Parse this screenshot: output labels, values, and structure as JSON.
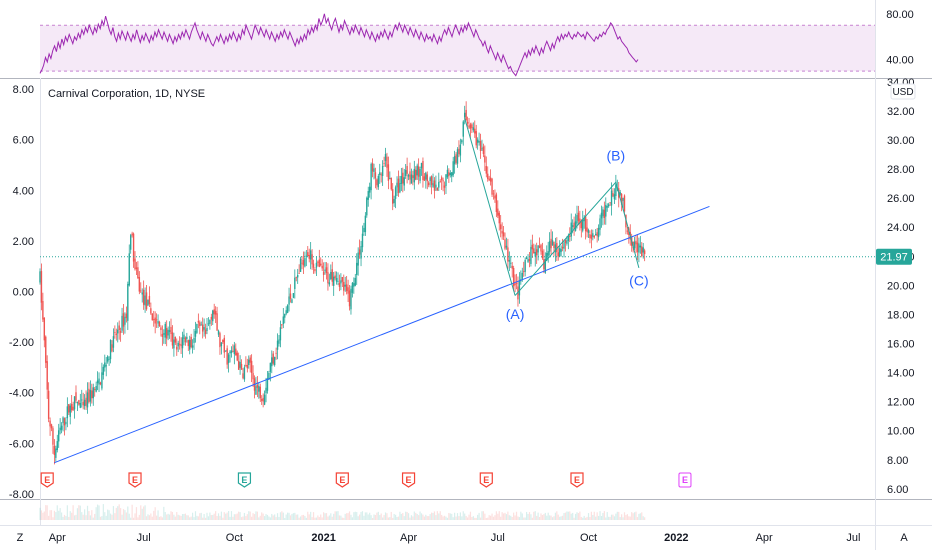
{
  "chart_data": [
    {
      "type": "line",
      "name": "rsi-panel",
      "y_ticks": [
        "80.00",
        "40.00"
      ],
      "y_tick_values": [
        80,
        40
      ],
      "band": [
        30,
        70
      ],
      "ylim": [
        24,
        92
      ],
      "x_index_range": [
        0,
        350
      ],
      "values": [
        28,
        31,
        35,
        42,
        38,
        45,
        41,
        48,
        52,
        47,
        55,
        50,
        58,
        53,
        60,
        56,
        62,
        58,
        54,
        60,
        57,
        63,
        59,
        66,
        62,
        68,
        64,
        70,
        66,
        62,
        68,
        64,
        71,
        67,
        74,
        70,
        78,
        72,
        66,
        62,
        68,
        60,
        56,
        63,
        58,
        65,
        61,
        57,
        64,
        60,
        56,
        62,
        58,
        66,
        60,
        55,
        61,
        57,
        63,
        59,
        55,
        61,
        57,
        64,
        60,
        66,
        62,
        58,
        64,
        60,
        56,
        62,
        58,
        54,
        60,
        56,
        62,
        58,
        64,
        60,
        66,
        62,
        58,
        64,
        68,
        72,
        66,
        62,
        58,
        64,
        60,
        56,
        62,
        58,
        54,
        52,
        56,
        60,
        56,
        62,
        58,
        54,
        60,
        56,
        62,
        58,
        64,
        60,
        56,
        62,
        58,
        66,
        62,
        70,
        66,
        62,
        58,
        64,
        70,
        66,
        62,
        68,
        64,
        60,
        66,
        62,
        58,
        64,
        60,
        56,
        62,
        58,
        64,
        60,
        66,
        62,
        58,
        64,
        60,
        56,
        52,
        58,
        54,
        60,
        56,
        62,
        58,
        66,
        62,
        68,
        64,
        70,
        66,
        76,
        70,
        74,
        80,
        72,
        76,
        70,
        66,
        72,
        76,
        70,
        64,
        70,
        66,
        74,
        70,
        66,
        62,
        68,
        64,
        70,
        66,
        62,
        68,
        64,
        60,
        66,
        62,
        58,
        64,
        60,
        56,
        62,
        58,
        64,
        60,
        66,
        62,
        58,
        64,
        60,
        66,
        70,
        66,
        72,
        68,
        64,
        70,
        66,
        62,
        68,
        64,
        60,
        66,
        62,
        58,
        64,
        60,
        56,
        62,
        58,
        60,
        56,
        62,
        58,
        54,
        60,
        56,
        62,
        66,
        62,
        68,
        64,
        60,
        66,
        70,
        66,
        62,
        68,
        64,
        70,
        66,
        72,
        68,
        64,
        60,
        66,
        62,
        58,
        56,
        52,
        56,
        50,
        46,
        52,
        48,
        44,
        40,
        46,
        42,
        38,
        44,
        40,
        36,
        32,
        34,
        30,
        28,
        26,
        30,
        34,
        38,
        42,
        46,
        42,
        48,
        44,
        50,
        46,
        52,
        48,
        44,
        50,
        46,
        52,
        56,
        52,
        48,
        54,
        50,
        56,
        60,
        56,
        62,
        58,
        62,
        60,
        64,
        60,
        58,
        62,
        60,
        64,
        62,
        60,
        62,
        58,
        64,
        62,
        60,
        58,
        56,
        60,
        58,
        62,
        60,
        64,
        62,
        66,
        68,
        72,
        70,
        66,
        62,
        58,
        60,
        56,
        54,
        52,
        50,
        46,
        44,
        42,
        40,
        38,
        40
      ],
      "color": "#9c27b0"
    },
    {
      "type": "candlestick",
      "name": "price-panel",
      "title": "Carnival Corporation, 1D, NYSE",
      "currency": "USD",
      "right_ticks": [
        "34.00",
        "32.00",
        "30.00",
        "28.00",
        "26.00",
        "24.00",
        "22.00",
        "20.00",
        "18.00",
        "16.00",
        "14.00",
        "12.00",
        "10.00",
        "8.00",
        "6.00"
      ],
      "right_tick_values": [
        34,
        32,
        30,
        28,
        26,
        24,
        22,
        20,
        18,
        16,
        14,
        12,
        10,
        8,
        6
      ],
      "left_ticks": [
        "8.00",
        "6.00",
        "4.00",
        "2.00",
        "0.00",
        "-2.00",
        "-4.00",
        "-6.00",
        "-8.00"
      ],
      "left_tick_values": [
        8,
        6,
        4,
        2,
        0,
        -2,
        -4,
        -6,
        -8
      ],
      "ylim": [
        5.3,
        34.2
      ],
      "left_ylim": [
        -8.2,
        8.4
      ],
      "x_index_range": [
        0,
        580
      ],
      "last_price": "21.97",
      "last_price_value": 21.97,
      "up_color": "#26a69a",
      "down_color": "#ef5350",
      "price_path": [
        [
          0,
          20.5
        ],
        [
          3,
          16
        ],
        [
          6,
          11
        ],
        [
          10,
          8.5
        ],
        [
          14,
          10
        ],
        [
          20,
          11.5
        ],
        [
          25,
          12
        ],
        [
          30,
          11.5
        ],
        [
          35,
          12.5
        ],
        [
          40,
          13
        ],
        [
          45,
          14.5
        ],
        [
          50,
          16
        ],
        [
          55,
          17
        ],
        [
          60,
          18
        ],
        [
          63,
          24
        ],
        [
          66,
          21
        ],
        [
          70,
          19.5
        ],
        [
          75,
          18.5
        ],
        [
          80,
          17.5
        ],
        [
          85,
          17
        ],
        [
          90,
          16.5
        ],
        [
          95,
          15.5
        ],
        [
          100,
          16.5
        ],
        [
          105,
          16
        ],
        [
          110,
          17
        ],
        [
          115,
          16.5
        ],
        [
          120,
          18.5
        ],
        [
          125,
          16
        ],
        [
          130,
          15
        ],
        [
          135,
          15.5
        ],
        [
          140,
          14
        ],
        [
          145,
          14.5
        ],
        [
          150,
          13
        ],
        [
          155,
          12.5
        ],
        [
          160,
          14.5
        ],
        [
          165,
          16
        ],
        [
          170,
          18
        ],
        [
          175,
          19.5
        ],
        [
          180,
          21
        ],
        [
          185,
          22.5
        ],
        [
          190,
          21.5
        ],
        [
          195,
          21
        ],
        [
          200,
          20.5
        ],
        [
          205,
          21
        ],
        [
          210,
          20
        ],
        [
          215,
          19
        ],
        [
          220,
          21.5
        ],
        [
          225,
          24
        ],
        [
          230,
          28
        ],
        [
          235,
          27
        ],
        [
          240,
          28.5
        ],
        [
          245,
          26
        ],
        [
          250,
          27
        ],
        [
          255,
          28
        ],
        [
          260,
          27.5
        ],
        [
          265,
          28
        ],
        [
          270,
          27
        ],
        [
          275,
          26.5
        ],
        [
          280,
          27
        ],
        [
          285,
          28
        ],
        [
          290,
          29
        ],
        [
          295,
          31.5
        ],
        [
          300,
          31
        ],
        [
          305,
          29.5
        ],
        [
          310,
          28
        ],
        [
          315,
          26
        ],
        [
          320,
          24
        ],
        [
          325,
          22
        ],
        [
          330,
          20
        ],
        [
          332,
          19.5
        ],
        [
          336,
          21
        ],
        [
          340,
          22
        ],
        [
          345,
          22.5
        ],
        [
          350,
          21.5
        ],
        [
          355,
          23
        ],
        [
          360,
          22.5
        ],
        [
          365,
          23
        ],
        [
          370,
          24
        ],
        [
          375,
          24.5
        ],
        [
          380,
          24
        ],
        [
          385,
          23
        ],
        [
          390,
          24.5
        ],
        [
          395,
          26
        ],
        [
          400,
          27
        ],
        [
          404,
          26
        ],
        [
          408,
          24
        ],
        [
          412,
          23
        ],
        [
          416,
          22.5
        ],
        [
          420,
          22
        ]
      ],
      "trendline": [
        [
          10,
          7.8
        ],
        [
          410,
          23.3
        ]
      ],
      "horizontal_line": 21.97,
      "waves": [
        {
          "label": "(A)",
          "i": 330,
          "v": 19.3,
          "label_v": 17.7
        },
        {
          "label": "(B)",
          "i": 400,
          "v": 27.1,
          "label_v": 28.6
        },
        {
          "label": "(C)",
          "i": 416,
          "v": 21.2,
          "label_v": 20.0
        }
      ],
      "wave_path": [
        [
          330,
          19.3
        ],
        [
          400,
          27.1
        ],
        [
          416,
          21.2
        ]
      ],
      "wave_left_leg": [
        [
          295,
          31.5
        ],
        [
          330,
          19.3
        ]
      ],
      "earnings": [
        {
          "i": 5,
          "label": "E",
          "kind": "past"
        },
        {
          "i": 66,
          "label": "E",
          "kind": "past"
        },
        {
          "i": 142,
          "label": "E",
          "kind": "beat"
        },
        {
          "i": 210,
          "label": "E",
          "kind": "past"
        },
        {
          "i": 256,
          "label": "E",
          "kind": "past"
        },
        {
          "i": 310,
          "label": "E",
          "kind": "past"
        },
        {
          "i": 373,
          "label": "E",
          "kind": "past"
        },
        {
          "i": 448,
          "label": "E",
          "kind": "future"
        }
      ]
    }
  ],
  "time_axis": {
    "labels": [
      {
        "text": "Apr",
        "i": 12,
        "bold": false
      },
      {
        "text": "Jul",
        "i": 72,
        "bold": false
      },
      {
        "text": "Oct",
        "i": 135,
        "bold": false
      },
      {
        "text": "2021",
        "i": 197,
        "bold": true
      },
      {
        "text": "Apr",
        "i": 256,
        "bold": false
      },
      {
        "text": "Jul",
        "i": 318,
        "bold": false
      },
      {
        "text": "Oct",
        "i": 381,
        "bold": false
      },
      {
        "text": "2022",
        "i": 442,
        "bold": true
      },
      {
        "text": "Apr",
        "i": 503,
        "bold": false
      },
      {
        "text": "Jul",
        "i": 565,
        "bold": false
      }
    ]
  },
  "corner": {
    "left": "Z",
    "right": "A"
  }
}
